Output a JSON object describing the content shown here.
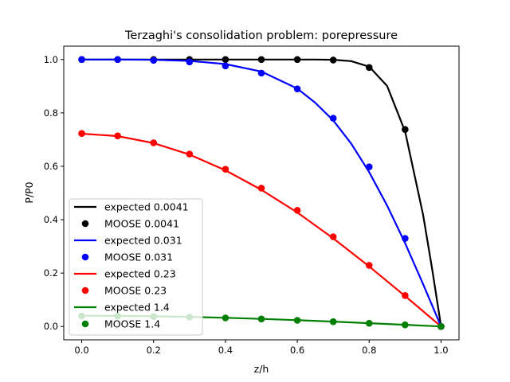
{
  "chart_data": {
    "type": "line",
    "title": "Terzaghi's consolidation problem: porepressure",
    "xlabel": "z/h",
    "ylabel": "P/P0",
    "xlim": [
      -0.05,
      1.05
    ],
    "ylim": [
      -0.05,
      1.05
    ],
    "xticks": [
      "0.0",
      "0.2",
      "0.4",
      "0.6",
      "0.8",
      "1.0"
    ],
    "yticks": [
      "0.0",
      "0.2",
      "0.4",
      "0.6",
      "0.8",
      "1.0"
    ],
    "grid": false,
    "legend_position": "lower-left",
    "series": [
      {
        "name": "expected 0.0041",
        "kind": "line",
        "color": "#000000",
        "x": [
          0,
          0.1,
          0.2,
          0.3,
          0.4,
          0.5,
          0.6,
          0.65,
          0.7,
          0.75,
          0.8,
          0.85,
          0.9,
          0.95,
          0.975,
          1.0
        ],
        "y": [
          1,
          1,
          1,
          1,
          1,
          1,
          1,
          0.9999,
          0.999,
          0.994,
          0.973,
          0.901,
          0.73,
          0.419,
          0.217,
          0
        ]
      },
      {
        "name": "MOOSE 0.0041",
        "kind": "points",
        "color": "#000000",
        "x": [
          0,
          0.1,
          0.2,
          0.3,
          0.4,
          0.5,
          0.6,
          0.7,
          0.8,
          0.9,
          1.0
        ],
        "y": [
          1.0,
          1.0,
          1.0,
          1.0,
          1.0,
          1.0,
          1.0,
          0.998,
          0.97,
          0.738,
          0
        ]
      },
      {
        "name": "expected 0.031",
        "kind": "line",
        "color": "#0000ff",
        "x": [
          0,
          0.1,
          0.2,
          0.3,
          0.4,
          0.5,
          0.6,
          0.65,
          0.7,
          0.75,
          0.8,
          0.85,
          0.9,
          0.95,
          1.0
        ],
        "y": [
          1.0,
          0.9998,
          0.999,
          0.995,
          0.983,
          0.955,
          0.891,
          0.838,
          0.772,
          0.685,
          0.578,
          0.453,
          0.312,
          0.159,
          0
        ]
      },
      {
        "name": "MOOSE 0.031",
        "kind": "points",
        "color": "#0000ff",
        "x": [
          0,
          0.1,
          0.2,
          0.3,
          0.4,
          0.5,
          0.6,
          0.7,
          0.8,
          0.9,
          1.0
        ],
        "y": [
          1.0,
          1.0,
          0.997,
          0.991,
          0.976,
          0.949,
          0.89,
          0.78,
          0.598,
          0.33,
          0
        ]
      },
      {
        "name": "expected 0.23",
        "kind": "line",
        "color": "#ff0000",
        "x": [
          0,
          0.1,
          0.2,
          0.3,
          0.4,
          0.5,
          0.6,
          0.7,
          0.8,
          0.9,
          1.0
        ],
        "y": [
          0.722,
          0.713,
          0.687,
          0.644,
          0.585,
          0.512,
          0.427,
          0.33,
          0.225,
          0.114,
          0
        ]
      },
      {
        "name": "MOOSE 0.23",
        "kind": "points",
        "color": "#ff0000",
        "x": [
          0,
          0.1,
          0.2,
          0.3,
          0.4,
          0.5,
          0.6,
          0.7,
          0.8,
          0.9,
          1.0
        ],
        "y": [
          0.723,
          0.714,
          0.688,
          0.646,
          0.589,
          0.518,
          0.435,
          0.336,
          0.229,
          0.116,
          0
        ]
      },
      {
        "name": "expected 1.4",
        "kind": "line",
        "color": "#008000",
        "x": [
          0,
          0.1,
          0.2,
          0.3,
          0.4,
          0.5,
          0.6,
          0.7,
          0.8,
          0.9,
          1.0
        ],
        "y": [
          0.0402,
          0.0397,
          0.0382,
          0.0358,
          0.0325,
          0.0284,
          0.0236,
          0.0183,
          0.0124,
          0.0063,
          0
        ]
      },
      {
        "name": "MOOSE 1.4",
        "kind": "points",
        "color": "#008000",
        "x": [
          0,
          0.1,
          0.2,
          0.3,
          0.4,
          0.5,
          0.6,
          0.7,
          0.8,
          0.9,
          1.0
        ],
        "y": [
          0.039,
          0.039,
          0.037,
          0.035,
          0.032,
          0.028,
          0.023,
          0.018,
          0.012,
          0.006,
          0
        ]
      }
    ]
  }
}
